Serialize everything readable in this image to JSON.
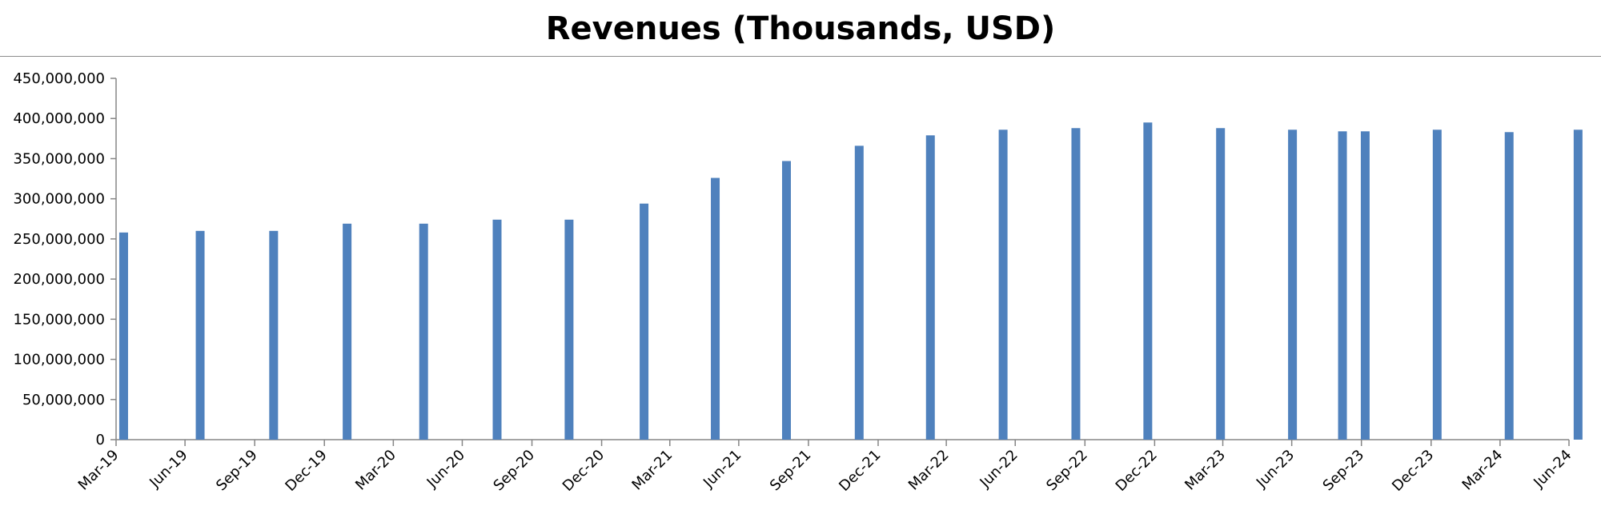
{
  "chart_data": {
    "type": "bar",
    "title": "Revenues (Thousands, USD)",
    "xlabel": "",
    "ylabel": "",
    "ylim": [
      0,
      450000000
    ],
    "yticks": [
      0,
      50000000,
      100000000,
      150000000,
      200000000,
      250000000,
      300000000,
      350000000,
      400000000,
      450000000
    ],
    "ytick_labels": [
      "0",
      "50,000,000",
      "100,000,000",
      "150,000,000",
      "200,000,000",
      "250,000,000",
      "300,000,000",
      "350,000,000",
      "400,000,000",
      "450,000,000"
    ],
    "x_axis": "date",
    "x_range": [
      "2019-03-31",
      "2024-06-30"
    ],
    "xticks": [
      "2019-03-31",
      "2019-06-30",
      "2019-09-30",
      "2019-12-31",
      "2020-03-31",
      "2020-06-30",
      "2020-09-30",
      "2020-12-31",
      "2021-03-31",
      "2021-06-30",
      "2021-09-30",
      "2021-12-31",
      "2022-03-31",
      "2022-06-30",
      "2022-09-30",
      "2022-12-31",
      "2023-03-31",
      "2023-06-30",
      "2023-09-30",
      "2023-12-31",
      "2024-03-31",
      "2024-06-30"
    ],
    "xtick_labels": [
      "Mar-19",
      "Jun-19",
      "Sep-19",
      "Dec-19",
      "Mar-20",
      "Jun-20",
      "Sep-20",
      "Dec-20",
      "Mar-21",
      "Jun-21",
      "Sep-21",
      "Dec-21",
      "Mar-22",
      "Jun-22",
      "Sep-22",
      "Dec-22",
      "Mar-23",
      "Jun-23",
      "Sep-23",
      "Dec-23",
      "Mar-24",
      "Jun-24"
    ],
    "bar_color": "#4f81bd",
    "axis_color": "#868686",
    "grid": false,
    "legend": "none",
    "x": [
      "2019-04-10",
      "2019-07-20",
      "2019-10-25",
      "2020-01-30",
      "2020-05-10",
      "2020-08-15",
      "2020-11-18",
      "2021-02-25",
      "2021-05-30",
      "2021-09-01",
      "2021-12-06",
      "2022-03-10",
      "2022-06-14",
      "2022-09-18",
      "2022-12-22",
      "2023-03-28",
      "2023-07-01",
      "2023-09-05",
      "2023-10-05",
      "2024-01-08",
      "2024-04-12",
      "2024-07-12"
    ],
    "values": [
      258000000,
      260000000,
      260000000,
      269000000,
      269000000,
      274000000,
      274000000,
      294000000,
      326000000,
      347000000,
      366000000,
      379000000,
      386000000,
      388000000,
      395000000,
      388000000,
      386000000,
      384000000,
      384000000,
      386000000,
      383000000,
      386000000
    ]
  }
}
